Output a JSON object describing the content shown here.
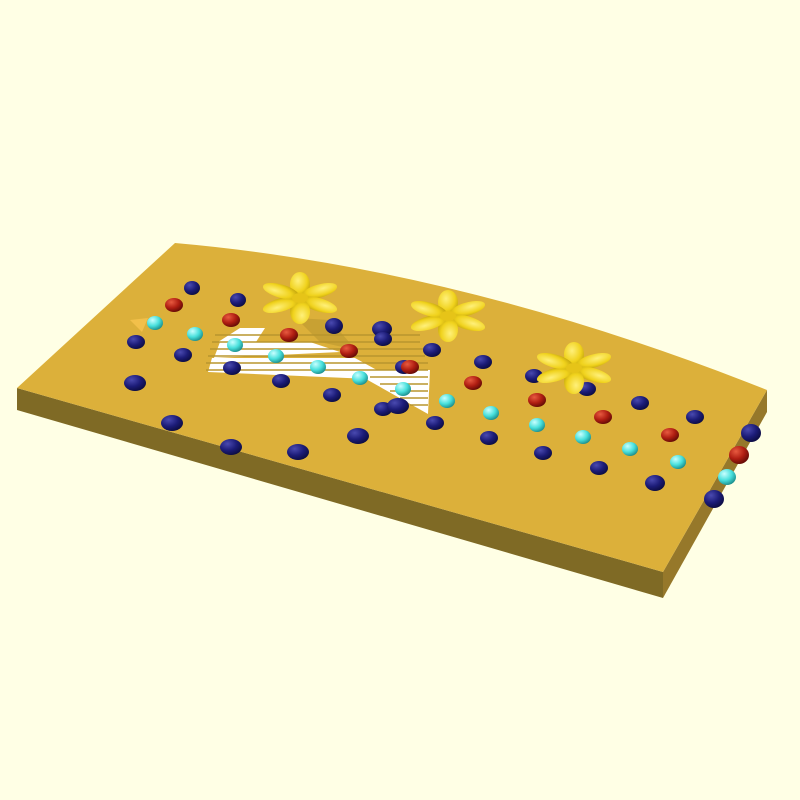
{
  "scene": {
    "background_color": "#ffffe5",
    "board": {
      "top_color": "#e0b43a",
      "front_color": "#7f6a25",
      "side_color": "#b8952e"
    },
    "cutout_color": "#ffffff",
    "marble_colors": {
      "navy": "#1a1a6e",
      "red": "#b01e12",
      "cyan": "#48e0dc"
    },
    "flower_color": "#f0d21c",
    "counts": {
      "flowers": 3,
      "navy_marbles": 42,
      "red_marbles": 11,
      "cyan_marbles": 16
    }
  }
}
